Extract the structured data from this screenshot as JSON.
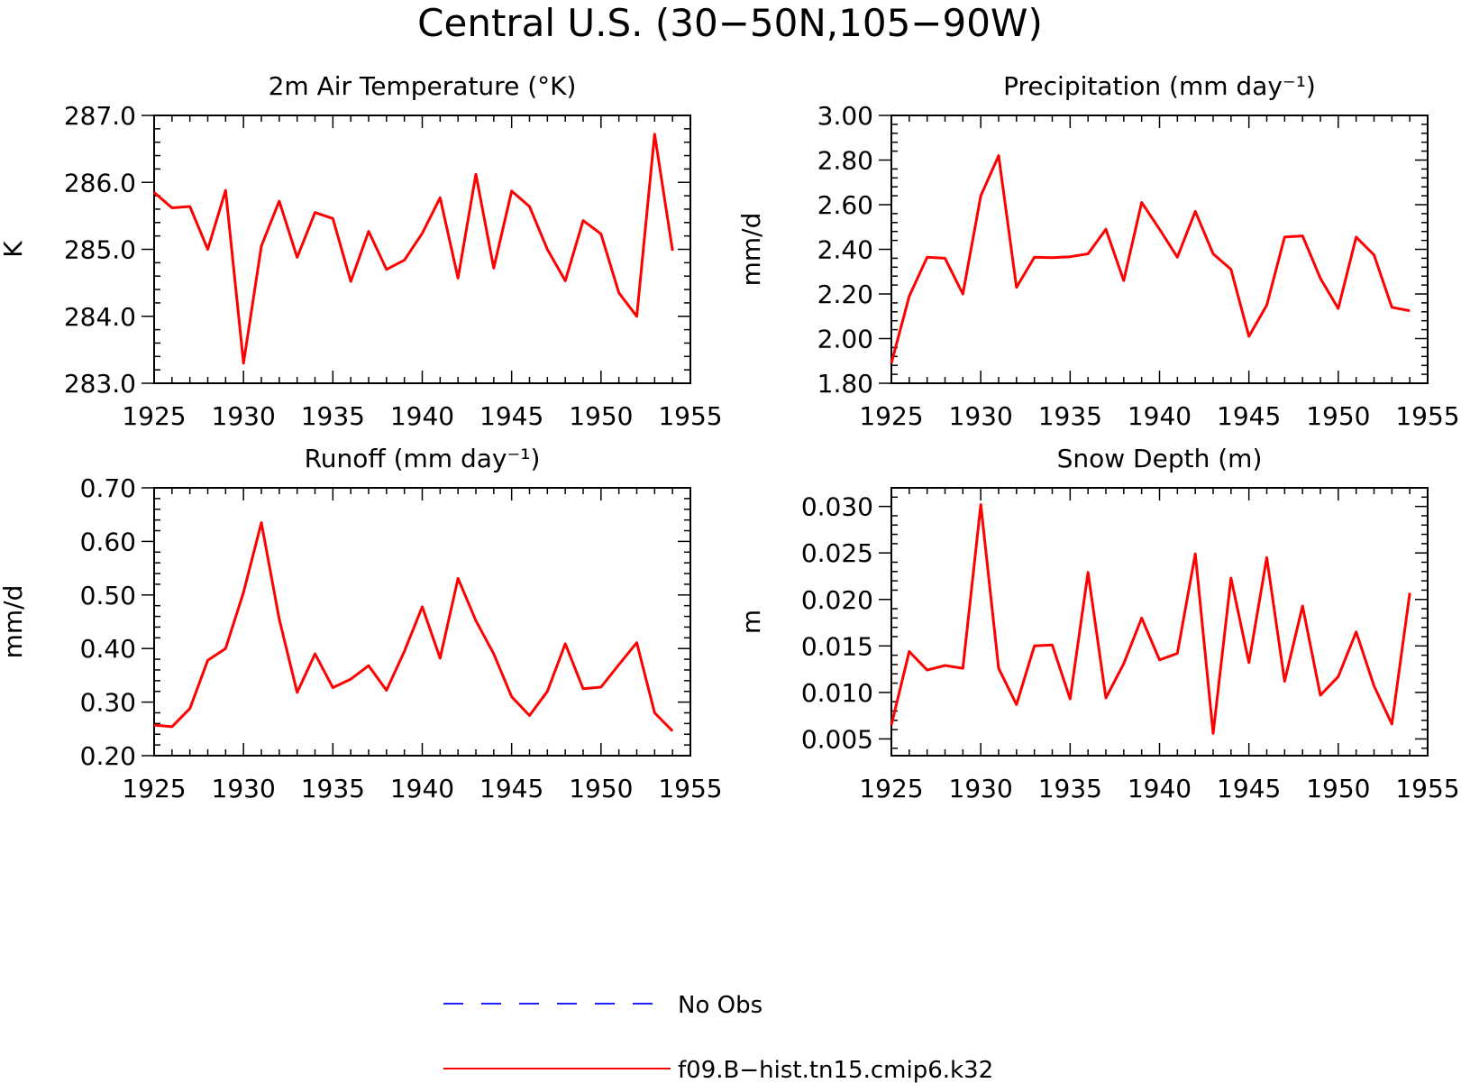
{
  "figure": {
    "title": "Central U.S. (30−50N,105−90W)",
    "legend": [
      {
        "label": "No Obs",
        "color": "#1f1fff",
        "style": "dashed"
      },
      {
        "label": "f09.B−hist.tn15.cmip6.k32",
        "color": "#ff0000",
        "style": "solid"
      }
    ]
  },
  "chart_data": [
    {
      "type": "line",
      "title": "2m Air Temperature (°K)",
      "ylabel": "K",
      "xlim": [
        1925,
        1955
      ],
      "ylim": [
        283.0,
        287.0
      ],
      "xticks": [
        "1925",
        "1930",
        "1935",
        "1940",
        "1945",
        "1950",
        "1955"
      ],
      "yticks": [
        "283.0",
        "284.0",
        "285.0",
        "286.0",
        "287.0"
      ],
      "series": [
        {
          "color": "#ff0000",
          "x": [
            1925,
            1926,
            1927,
            1928,
            1929,
            1930,
            1931,
            1932,
            1933,
            1934,
            1935,
            1936,
            1937,
            1938,
            1939,
            1940,
            1941,
            1942,
            1943,
            1944,
            1945,
            1946,
            1947,
            1948,
            1949,
            1950,
            1951,
            1952,
            1953,
            1954
          ],
          "values": [
            285.85,
            285.62,
            285.64,
            285.0,
            285.88,
            283.3,
            285.05,
            285.72,
            284.88,
            285.55,
            285.46,
            284.52,
            285.27,
            284.7,
            284.84,
            285.24,
            285.77,
            284.57,
            286.12,
            284.72,
            285.87,
            285.64,
            285.0,
            284.53,
            285.43,
            285.23,
            284.35,
            284.0,
            286.72,
            284.98
          ]
        }
      ]
    },
    {
      "type": "line",
      "title": "Precipitation (mm day⁻¹)",
      "ylabel": "mm/d",
      "xlim": [
        1925,
        1955
      ],
      "ylim": [
        1.8,
        3.0
      ],
      "xticks": [
        "1925",
        "1930",
        "1935",
        "1940",
        "1945",
        "1950",
        "1955"
      ],
      "yticks": [
        "1.80",
        "2.00",
        "2.20",
        "2.40",
        "2.60",
        "2.80",
        "3.00"
      ],
      "series": [
        {
          "color": "#ff0000",
          "x": [
            1925,
            1926,
            1927,
            1928,
            1929,
            1930,
            1931,
            1932,
            1933,
            1934,
            1935,
            1936,
            1937,
            1938,
            1939,
            1940,
            1941,
            1942,
            1943,
            1944,
            1945,
            1946,
            1947,
            1948,
            1949,
            1950,
            1951,
            1952,
            1953,
            1954
          ],
          "values": [
            1.89,
            2.19,
            2.365,
            2.36,
            2.2,
            2.64,
            2.82,
            2.23,
            2.365,
            2.363,
            2.367,
            2.38,
            2.49,
            2.26,
            2.61,
            2.49,
            2.365,
            2.57,
            2.38,
            2.31,
            2.01,
            2.15,
            2.455,
            2.46,
            2.27,
            2.135,
            2.455,
            2.375,
            2.14,
            2.125
          ]
        }
      ]
    },
    {
      "type": "line",
      "title": "Runoff (mm day⁻¹)",
      "ylabel": "mm/d",
      "xlim": [
        1925,
        1955
      ],
      "ylim": [
        0.2,
        0.7
      ],
      "xticks": [
        "1925",
        "1930",
        "1935",
        "1940",
        "1945",
        "1950",
        "1955"
      ],
      "yticks": [
        "0.20",
        "0.30",
        "0.40",
        "0.50",
        "0.60",
        "0.70"
      ],
      "series": [
        {
          "color": "#ff0000",
          "x": [
            1925,
            1926,
            1927,
            1928,
            1929,
            1930,
            1931,
            1932,
            1933,
            1934,
            1935,
            1936,
            1937,
            1938,
            1939,
            1940,
            1941,
            1942,
            1943,
            1944,
            1945,
            1946,
            1947,
            1948,
            1949,
            1950,
            1951,
            1952,
            1953,
            1954
          ],
          "values": [
            0.257,
            0.254,
            0.288,
            0.378,
            0.4,
            0.505,
            0.635,
            0.455,
            0.318,
            0.39,
            0.327,
            0.343,
            0.368,
            0.322,
            0.395,
            0.478,
            0.382,
            0.531,
            0.452,
            0.39,
            0.31,
            0.275,
            0.32,
            0.409,
            0.325,
            0.328,
            0.37,
            0.411,
            0.28,
            0.246
          ]
        }
      ]
    },
    {
      "type": "line",
      "title": "Snow Depth (m)",
      "ylabel": "m",
      "xlim": [
        1925,
        1955
      ],
      "ylim": [
        0.0032,
        0.032
      ],
      "xticks": [
        "1925",
        "1930",
        "1935",
        "1940",
        "1945",
        "1950",
        "1955"
      ],
      "yticks": [
        "0.005",
        "0.010",
        "0.015",
        "0.020",
        "0.025",
        "0.030"
      ],
      "series": [
        {
          "color": "#ff0000",
          "x": [
            1925,
            1926,
            1927,
            1928,
            1929,
            1930,
            1931,
            1932,
            1933,
            1934,
            1935,
            1936,
            1937,
            1938,
            1939,
            1940,
            1941,
            1942,
            1943,
            1944,
            1945,
            1946,
            1947,
            1948,
            1949,
            1950,
            1951,
            1952,
            1953,
            1954
          ],
          "values": [
            0.0065,
            0.0144,
            0.0124,
            0.0129,
            0.0126,
            0.0302,
            0.0126,
            0.0087,
            0.015,
            0.0151,
            0.0093,
            0.0229,
            0.0094,
            0.0131,
            0.018,
            0.0135,
            0.0142,
            0.0249,
            0.0056,
            0.0223,
            0.0132,
            0.0245,
            0.0112,
            0.0193,
            0.0097,
            0.0117,
            0.0165,
            0.0107,
            0.0066,
            0.0207
          ]
        }
      ]
    }
  ]
}
